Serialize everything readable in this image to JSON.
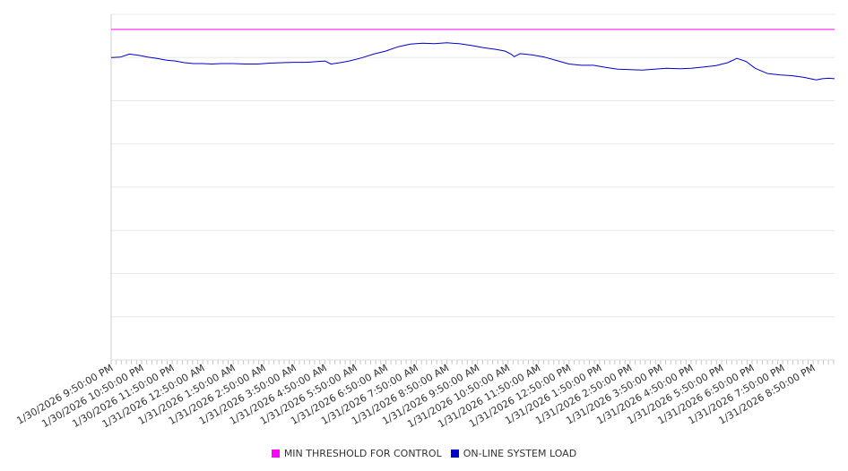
{
  "chart_data": {
    "type": "line",
    "title": "",
    "xlabel": "",
    "ylabel": "",
    "grid": true,
    "legend_position": "bottom-center",
    "x_tick_labels": [
      "1/30/2026 9:50:00 PM",
      "1/30/2026 10:50:00 PM",
      "1/30/2026 11:50:00 PM",
      "1/31/2026 12:50:00 AM",
      "1/31/2026 1:50:00 AM",
      "1/31/2026 2:50:00 AM",
      "1/31/2026 3:50:00 AM",
      "1/31/2026 4:50:00 AM",
      "1/31/2026 5:50:00 AM",
      "1/31/2026 6:50:00 AM",
      "1/31/2026 7:50:00 AM",
      "1/31/2026 8:50:00 AM",
      "1/31/2026 9:50:00 AM",
      "1/31/2026 10:50:00 AM",
      "1/31/2026 11:50:00 AM",
      "1/31/2026 12:50:00 PM",
      "1/31/2026 1:50:00 PM",
      "1/31/2026 2:50:00 PM",
      "1/31/2026 3:50:00 PM",
      "1/31/2026 4:50:00 PM",
      "1/31/2026 5:50:00 PM",
      "1/31/2026 6:50:00 PM",
      "1/31/2026 7:50:00 PM",
      "1/31/2026 8:50:00 PM"
    ],
    "x_range_hours": [
      0,
      23.7
    ],
    "ylim": [
      0,
      8
    ],
    "series": [
      {
        "name": "MIN THRESHOLD FOR CONTROL",
        "color": "#ff00ff",
        "points": [
          [
            0,
            7.65
          ],
          [
            23.7,
            7.65
          ]
        ]
      },
      {
        "name": "ON-LINE SYSTEM LOAD",
        "color": "#0000cc",
        "points": [
          [
            0,
            7.0
          ],
          [
            0.3,
            7.01
          ],
          [
            0.6,
            7.08
          ],
          [
            0.9,
            7.05
          ],
          [
            1.2,
            7.01
          ],
          [
            1.5,
            6.98
          ],
          [
            1.8,
            6.94
          ],
          [
            2.1,
            6.92
          ],
          [
            2.4,
            6.88
          ],
          [
            2.7,
            6.86
          ],
          [
            3.0,
            6.86
          ],
          [
            3.3,
            6.85
          ],
          [
            3.6,
            6.86
          ],
          [
            4.0,
            6.86
          ],
          [
            4.4,
            6.85
          ],
          [
            4.8,
            6.85
          ],
          [
            5.2,
            6.87
          ],
          [
            5.6,
            6.88
          ],
          [
            6.0,
            6.89
          ],
          [
            6.4,
            6.89
          ],
          [
            6.8,
            6.91
          ],
          [
            7.0,
            6.92
          ],
          [
            7.2,
            6.85
          ],
          [
            7.5,
            6.88
          ],
          [
            7.8,
            6.92
          ],
          [
            8.2,
            6.99
          ],
          [
            8.6,
            7.08
          ],
          [
            9.0,
            7.15
          ],
          [
            9.4,
            7.25
          ],
          [
            9.8,
            7.31
          ],
          [
            10.2,
            7.33
          ],
          [
            10.6,
            7.32
          ],
          [
            11.0,
            7.34
          ],
          [
            11.4,
            7.32
          ],
          [
            11.8,
            7.28
          ],
          [
            12.2,
            7.23
          ],
          [
            12.6,
            7.19
          ],
          [
            12.9,
            7.15
          ],
          [
            13.1,
            7.08
          ],
          [
            13.2,
            7.02
          ],
          [
            13.4,
            7.09
          ],
          [
            13.8,
            7.06
          ],
          [
            14.2,
            7.01
          ],
          [
            14.6,
            6.93
          ],
          [
            15.0,
            6.85
          ],
          [
            15.4,
            6.82
          ],
          [
            15.8,
            6.82
          ],
          [
            16.2,
            6.77
          ],
          [
            16.6,
            6.73
          ],
          [
            17.0,
            6.72
          ],
          [
            17.4,
            6.71
          ],
          [
            17.8,
            6.73
          ],
          [
            18.2,
            6.75
          ],
          [
            18.6,
            6.74
          ],
          [
            19.0,
            6.75
          ],
          [
            19.4,
            6.78
          ],
          [
            19.8,
            6.81
          ],
          [
            20.2,
            6.88
          ],
          [
            20.5,
            6.98
          ],
          [
            20.8,
            6.91
          ],
          [
            21.1,
            6.75
          ],
          [
            21.5,
            6.63
          ],
          [
            21.9,
            6.6
          ],
          [
            22.3,
            6.58
          ],
          [
            22.7,
            6.54
          ],
          [
            23.1,
            6.48
          ],
          [
            23.3,
            6.51
          ],
          [
            23.5,
            6.52
          ],
          [
            23.7,
            6.51
          ]
        ]
      }
    ]
  },
  "legend": {
    "items": [
      {
        "label": "MIN THRESHOLD FOR CONTROL",
        "color": "#ff00ff"
      },
      {
        "label": "ON-LINE SYSTEM LOAD",
        "color": "#0000cc"
      }
    ]
  }
}
